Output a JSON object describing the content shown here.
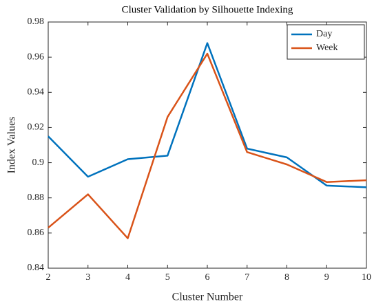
{
  "chart_data": {
    "type": "line",
    "title": "Cluster Validation by Silhouette Indexing",
    "xlabel": "Cluster Number",
    "ylabel": "Index Values",
    "x": [
      2,
      3,
      4,
      5,
      6,
      7,
      8,
      9,
      10
    ],
    "series": [
      {
        "name": "Day",
        "color": "#0072bd",
        "values": [
          0.915,
          0.892,
          0.902,
          0.904,
          0.968,
          0.908,
          0.903,
          0.887,
          0.886
        ]
      },
      {
        "name": "Week",
        "color": "#d95319",
        "values": [
          0.863,
          0.882,
          0.857,
          0.926,
          0.962,
          0.906,
          0.899,
          0.889,
          0.89
        ]
      }
    ],
    "xlim": [
      2,
      10
    ],
    "xticks": [
      2,
      3,
      4,
      5,
      6,
      7,
      8,
      9,
      10
    ],
    "ylim": [
      0.84,
      0.98
    ],
    "yticks": [
      0.84,
      0.86,
      0.88,
      0.9,
      0.92,
      0.94,
      0.96,
      0.98
    ],
    "grid": false,
    "legend": "northeast"
  }
}
